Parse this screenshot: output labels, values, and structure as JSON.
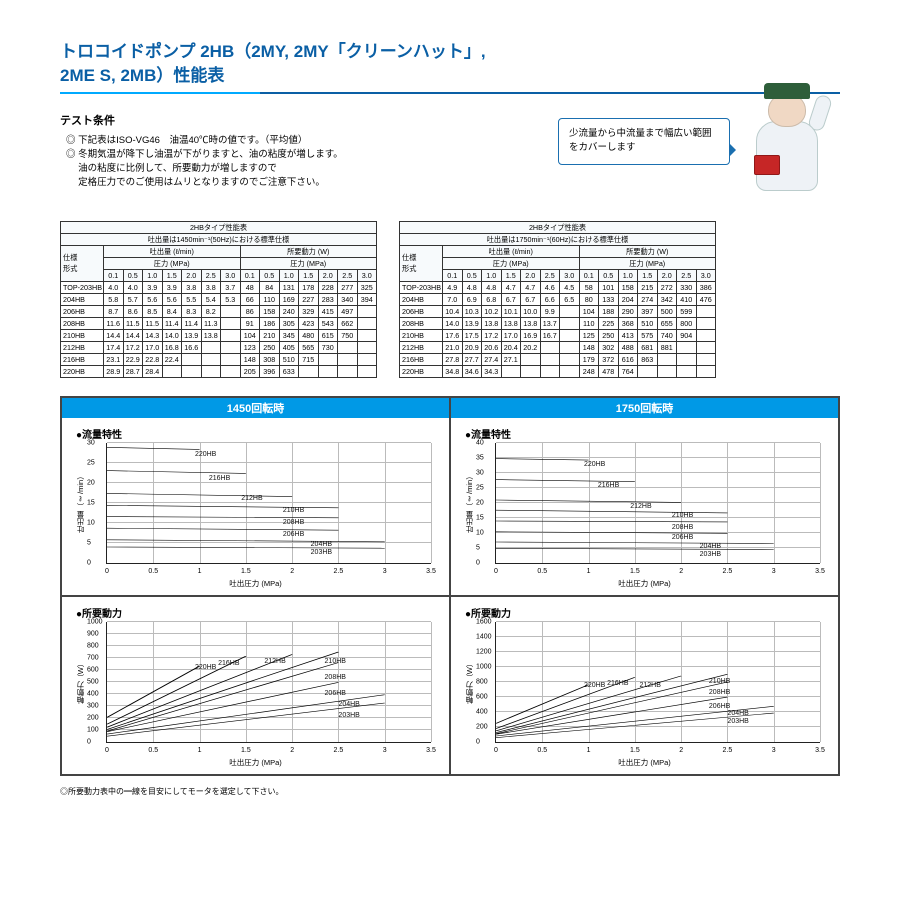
{
  "title": "トロコイドポンプ 2HB（2MY, 2MY「クリーンハット」,\n2ME S, 2MB）性能表",
  "conditions": {
    "heading": "テスト条件",
    "lines": [
      "◎ 下記表はISO-VG46　油温40℃時の値です。（平均値）",
      "◎ 冬期気温が降下し油温が下がりますと、油の粘度が増します。",
      "　 油の粘度に比例して、所要動力が増しますので",
      "　 定格圧力でのご使用はムリとなりますのでご注意下さい。"
    ]
  },
  "bubble": "少流量から中流量まで幅広い範囲をカバーします",
  "footnote": "◎所要動力表中の━線を目安にしてモータを選定して下さい。",
  "colors": {
    "accent": "#0a5fa5",
    "bar": "#0099e6",
    "grid": "#bbbbbb",
    "line": "#000000"
  },
  "tables": {
    "press_cols": [
      "0.1",
      "0.5",
      "1.0",
      "1.5",
      "2.0",
      "2.5",
      "3.0"
    ],
    "t1450": {
      "title": "2HBタイプ性能表",
      "sub": "吐出量は1450min⁻¹(50Hz)における標準仕様",
      "flow_head": "吐出量 (ℓ/min)",
      "power_head": "所要動力 (W)",
      "press_head": "圧力 (MPa)",
      "spec": "仕様",
      "model": "形式",
      "rows": [
        [
          "TOP-203HB",
          "4.0",
          "4.0",
          "3.9",
          "3.9",
          "3.8",
          "3.8",
          "3.7",
          "48",
          "84",
          "131",
          "178",
          "228",
          "277",
          "325"
        ],
        [
          "204HB",
          "5.8",
          "5.7",
          "5.6",
          "5.6",
          "5.5",
          "5.4",
          "5.3",
          "66",
          "110",
          "169",
          "227",
          "283",
          "340",
          "394"
        ],
        [
          "206HB",
          "8.7",
          "8.6",
          "8.5",
          "8.4",
          "8.3",
          "8.2",
          "",
          "86",
          "158",
          "240",
          "329",
          "415",
          "497",
          ""
        ],
        [
          "208HB",
          "11.6",
          "11.5",
          "11.5",
          "11.4",
          "11.4",
          "11.3",
          "",
          "91",
          "186",
          "305",
          "423",
          "543",
          "662",
          ""
        ],
        [
          "210HB",
          "14.4",
          "14.4",
          "14.3",
          "14.0",
          "13.9",
          "13.8",
          "",
          "104",
          "210",
          "345",
          "480",
          "615",
          "750",
          ""
        ],
        [
          "212HB",
          "17.4",
          "17.2",
          "17.0",
          "16.8",
          "16.6",
          "",
          "",
          "123",
          "250",
          "405",
          "565",
          "730",
          "",
          ""
        ],
        [
          "216HB",
          "23.1",
          "22.9",
          "22.8",
          "22.4",
          "",
          "",
          "",
          "148",
          "308",
          "510",
          "715",
          "",
          "",
          ""
        ],
        [
          "220HB",
          "28.9",
          "28.7",
          "28.4",
          "",
          "",
          "",
          "",
          "205",
          "396",
          "633",
          "",
          "",
          "",
          ""
        ]
      ]
    },
    "t1750": {
      "title": "2HBタイプ性能表",
      "sub": "吐出量は1750min⁻¹(60Hz)における標準仕様",
      "rows": [
        [
          "TOP-203HB",
          "4.9",
          "4.8",
          "4.8",
          "4.7",
          "4.7",
          "4.6",
          "4.5",
          "58",
          "101",
          "158",
          "215",
          "272",
          "330",
          "386"
        ],
        [
          "204HB",
          "7.0",
          "6.9",
          "6.8",
          "6.7",
          "6.7",
          "6.6",
          "6.5",
          "80",
          "133",
          "204",
          "274",
          "342",
          "410",
          "476"
        ],
        [
          "206HB",
          "10.4",
          "10.3",
          "10.2",
          "10.1",
          "10.0",
          "9.9",
          "",
          "104",
          "188",
          "290",
          "397",
          "500",
          "599",
          ""
        ],
        [
          "208HB",
          "14.0",
          "13.9",
          "13.8",
          "13.8",
          "13.8",
          "13.7",
          "",
          "110",
          "225",
          "368",
          "510",
          "655",
          "800",
          ""
        ],
        [
          "210HB",
          "17.6",
          "17.5",
          "17.2",
          "17.0",
          "16.9",
          "16.7",
          "",
          "125",
          "250",
          "413",
          "575",
          "740",
          "904",
          ""
        ],
        [
          "212HB",
          "21.0",
          "20.9",
          "20.6",
          "20.4",
          "20.2",
          "",
          "",
          "148",
          "302",
          "488",
          "681",
          "881",
          "",
          ""
        ],
        [
          "216HB",
          "27.8",
          "27.7",
          "27.4",
          "27.1",
          "",
          "",
          "",
          "179",
          "372",
          "616",
          "863",
          "",
          "",
          ""
        ],
        [
          "220HB",
          "34.8",
          "34.6",
          "34.3",
          "",
          "",
          "",
          "",
          "248",
          "478",
          "764",
          "",
          "",
          "",
          ""
        ]
      ]
    }
  },
  "charts": {
    "left": {
      "header": "1450回転時",
      "xlabel": "吐出圧力 (MPa)",
      "xticks": [
        0,
        0.5,
        1,
        1.5,
        2,
        2.5,
        3,
        3.5
      ],
      "flow": {
        "title": "●流量特性",
        "ylabel": "吐出量（ℓ/min）",
        "yticks": [
          0,
          5,
          10,
          15,
          20,
          25,
          30
        ],
        "ymax": 30,
        "series": [
          {
            "lbl": "220HB",
            "y0": 28.9,
            "y1": 28.4,
            "x1": 1.0,
            "lx": 0.95,
            "ly": 28
          },
          {
            "lbl": "216HB",
            "y0": 23.1,
            "y1": 22.4,
            "x1": 1.5,
            "lx": 1.1,
            "ly": 22
          },
          {
            "lbl": "212HB",
            "y0": 17.4,
            "y1": 16.6,
            "x1": 2.0,
            "lx": 1.45,
            "ly": 17
          },
          {
            "lbl": "210HB",
            "y0": 14.4,
            "y1": 13.8,
            "x1": 2.5,
            "lx": 1.9,
            "ly": 14
          },
          {
            "lbl": "208HB",
            "y0": 11.6,
            "y1": 11.3,
            "x1": 2.5,
            "lx": 1.9,
            "ly": 11
          },
          {
            "lbl": "206HB",
            "y0": 8.7,
            "y1": 8.2,
            "x1": 2.5,
            "lx": 1.9,
            "ly": 8
          },
          {
            "lbl": "204HB",
            "y0": 5.8,
            "y1": 5.3,
            "x1": 3.0,
            "lx": 2.2,
            "ly": 5.5
          },
          {
            "lbl": "203HB",
            "y0": 4.0,
            "y1": 3.7,
            "x1": 3.0,
            "lx": 2.2,
            "ly": 3.5
          }
        ]
      },
      "power": {
        "title": "●所要動力",
        "ylabel": "軸動力（W）",
        "yticks": [
          0,
          100,
          200,
          300,
          400,
          500,
          600,
          700,
          800,
          900,
          1000
        ],
        "ymax": 1000,
        "series": [
          {
            "lbl": "220HB",
            "y0": 205,
            "y1": 633,
            "x1": 1.0,
            "lx": 0.95,
            "ly": 650
          },
          {
            "lbl": "216HB",
            "y0": 148,
            "y1": 715,
            "x1": 1.5,
            "lx": 1.2,
            "ly": 680
          },
          {
            "lbl": "212HB",
            "y0": 123,
            "y1": 730,
            "x1": 2.0,
            "lx": 1.7,
            "ly": 700
          },
          {
            "lbl": "210HB",
            "y0": 104,
            "y1": 750,
            "x1": 2.5,
            "lx": 2.35,
            "ly": 700
          },
          {
            "lbl": "208HB",
            "y0": 91,
            "y1": 662,
            "x1": 2.5,
            "lx": 2.35,
            "ly": 560
          },
          {
            "lbl": "206HB",
            "y0": 86,
            "y1": 497,
            "x1": 2.5,
            "lx": 2.35,
            "ly": 430
          },
          {
            "lbl": "204HB",
            "y0": 66,
            "y1": 394,
            "x1": 3.0,
            "lx": 2.5,
            "ly": 340
          },
          {
            "lbl": "203HB",
            "y0": 48,
            "y1": 325,
            "x1": 3.0,
            "lx": 2.5,
            "ly": 250
          }
        ]
      }
    },
    "right": {
      "header": "1750回転時",
      "xlabel": "吐出圧力 (MPa)",
      "xticks": [
        0,
        0.5,
        1,
        1.5,
        2,
        2.5,
        3,
        3.5
      ],
      "flow": {
        "title": "●流量特性",
        "ylabel": "吐出量（ℓ/min）",
        "yticks": [
          0,
          5,
          10,
          15,
          20,
          25,
          30,
          35,
          40
        ],
        "ymax": 40,
        "series": [
          {
            "lbl": "220HB",
            "y0": 34.8,
            "y1": 34.3,
            "x1": 1.0,
            "lx": 0.95,
            "ly": 34
          },
          {
            "lbl": "216HB",
            "y0": 27.8,
            "y1": 27.1,
            "x1": 1.5,
            "lx": 1.1,
            "ly": 27
          },
          {
            "lbl": "212HB",
            "y0": 21.0,
            "y1": 20.2,
            "x1": 2.0,
            "lx": 1.45,
            "ly": 20
          },
          {
            "lbl": "210HB",
            "y0": 17.6,
            "y1": 16.7,
            "x1": 2.5,
            "lx": 1.9,
            "ly": 17
          },
          {
            "lbl": "208HB",
            "y0": 14.0,
            "y1": 13.7,
            "x1": 2.5,
            "lx": 1.9,
            "ly": 13
          },
          {
            "lbl": "206HB",
            "y0": 10.4,
            "y1": 9.9,
            "x1": 2.5,
            "lx": 1.9,
            "ly": 9.5
          },
          {
            "lbl": "204HB",
            "y0": 7.0,
            "y1": 6.5,
            "x1": 3.0,
            "lx": 2.2,
            "ly": 6.5
          },
          {
            "lbl": "203HB",
            "y0": 4.9,
            "y1": 4.5,
            "x1": 3.0,
            "lx": 2.2,
            "ly": 4
          }
        ]
      },
      "power": {
        "title": "●所要動力",
        "ylabel": "軸動力（W）",
        "yticks": [
          0,
          200,
          400,
          600,
          800,
          1000,
          1200,
          1400,
          1600
        ],
        "ymax": 1600,
        "series": [
          {
            "lbl": "220HB",
            "y0": 248,
            "y1": 764,
            "x1": 1.0,
            "lx": 0.95,
            "ly": 800
          },
          {
            "lbl": "216HB",
            "y0": 179,
            "y1": 863,
            "x1": 1.5,
            "lx": 1.2,
            "ly": 820
          },
          {
            "lbl": "212HB",
            "y0": 148,
            "y1": 881,
            "x1": 2.0,
            "lx": 1.55,
            "ly": 790
          },
          {
            "lbl": "210HB",
            "y0": 125,
            "y1": 904,
            "x1": 2.5,
            "lx": 2.3,
            "ly": 850
          },
          {
            "lbl": "208HB",
            "y0": 110,
            "y1": 800,
            "x1": 2.5,
            "lx": 2.3,
            "ly": 700
          },
          {
            "lbl": "206HB",
            "y0": 104,
            "y1": 599,
            "x1": 2.5,
            "lx": 2.3,
            "ly": 520
          },
          {
            "lbl": "204HB",
            "y0": 80,
            "y1": 476,
            "x1": 3.0,
            "lx": 2.5,
            "ly": 420
          },
          {
            "lbl": "203HB",
            "y0": 58,
            "y1": 386,
            "x1": 3.0,
            "lx": 2.5,
            "ly": 310
          }
        ]
      }
    }
  }
}
